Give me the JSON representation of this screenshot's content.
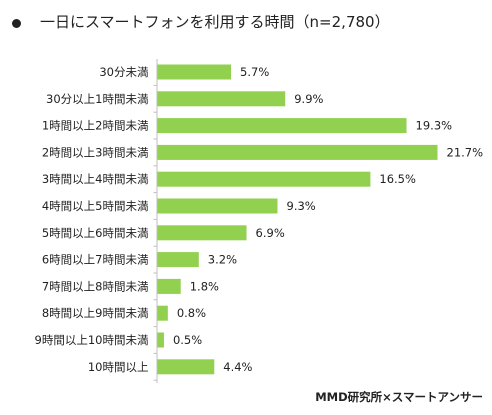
{
  "chart_data": {
    "type": "bar",
    "orientation": "horizontal",
    "title": "一日にスマートフォンを利用する時間（n=2,780）",
    "categories": [
      "30分未満",
      "30分以上1時間未満",
      "1時間以上2時間未満",
      "2時間以上3時間未満",
      "3時間以上4時間未満",
      "4時間以上5時間未満",
      "5時間以上6時間未満",
      "6時間以上7時間未満",
      "7時間以上8時間未満",
      "8時間以上9時間未満",
      "9時間以上10時間未満",
      "10時間以上"
    ],
    "values": [
      5.7,
      9.9,
      19.3,
      21.7,
      16.5,
      9.3,
      6.9,
      3.2,
      1.8,
      0.8,
      0.5,
      4.4
    ],
    "value_labels": [
      "5.7%",
      "9.9%",
      "19.3%",
      "21.7%",
      "16.5%",
      "9.3%",
      "6.9%",
      "3.2%",
      "1.8%",
      "0.8%",
      "0.5%",
      "4.4%"
    ],
    "xlim": [
      0,
      21.7
    ],
    "bar_color": "#92d050",
    "axis_color": "#bfbfbf",
    "grid": false,
    "legend": "none"
  },
  "source": "MMD研究所×スマートアンサー"
}
